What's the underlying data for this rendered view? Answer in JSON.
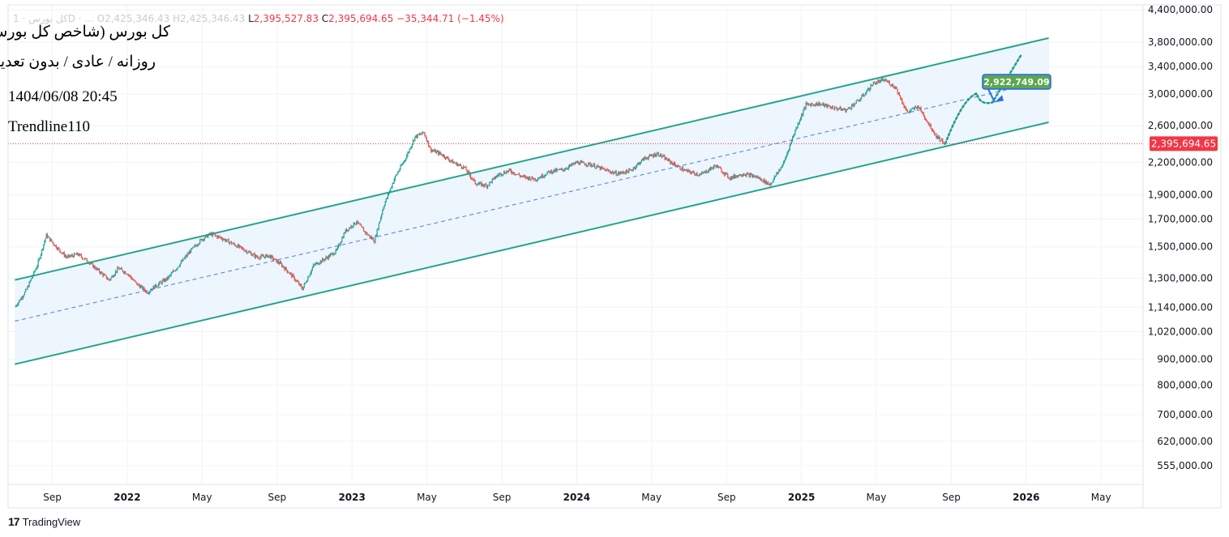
{
  "legend": {
    "symbol_faded": "کل بورس · 1D · ...",
    "open_label": "O",
    "open": "2,425,346.43",
    "high_label": "H",
    "high": "2,425,346.43",
    "low_label": "L",
    "low": "2,395,527.83",
    "close_label": "C",
    "close": "2,395,694.65",
    "change": "−35,344.71 (−1.45%)"
  },
  "annotations": {
    "title": "کل بورس (شاخص کل بورس)",
    "subtitle": "روزانه / عادی / بدون تعدیل",
    "datetime": "1404/06/08 20:45",
    "tag": "Trendline110"
  },
  "brand": {
    "logo_mark": "17",
    "name": "TradingView"
  },
  "colors": {
    "up": "#26a69a",
    "down": "#ef5350",
    "channel": "#22a38b",
    "channel_fill": "#eaf3fd",
    "midline": "#4f7fd9",
    "projection": "#1e9e8a",
    "target_box": "#5aa84e",
    "target_border": "#2962ff",
    "price_tag": "#f23645",
    "grid": "#f0f3fa"
  },
  "chart_data": {
    "type": "candlestick",
    "scale": "log",
    "ylim": [
      510000,
      4500000
    ],
    "y_ticks": [
      555000,
      620000,
      700000,
      800000,
      900000,
      1020000,
      1140000,
      1300000,
      1500000,
      1700000,
      1900000,
      2200000,
      2600000,
      3000000,
      3400000,
      3800000,
      4400000
    ],
    "y_tick_labels": [
      "555,000.00",
      "620,000.00",
      "700,000.00",
      "800,000.00",
      "900,000.00",
      "1,020,000.00",
      "1,140,000.00",
      "1,300,000.00",
      "1,500,000.00",
      "1,700,000.00",
      "1,900,000.00",
      "2,200,000.00",
      "2,600,000.00",
      "3,000,000.00",
      "3,400,000.00",
      "3,800,000.00",
      "4,400,000.00"
    ],
    "x_range": [
      "2021-07",
      "2026-09"
    ],
    "x_ticks": [
      {
        "label": "Sep",
        "t": 2021.667,
        "bold": false
      },
      {
        "label": "2022",
        "t": 2022.0,
        "bold": true
      },
      {
        "label": "May",
        "t": 2022.333,
        "bold": false
      },
      {
        "label": "Sep",
        "t": 2022.667,
        "bold": false
      },
      {
        "label": "2023",
        "t": 2023.0,
        "bold": true
      },
      {
        "label": "May",
        "t": 2023.333,
        "bold": false
      },
      {
        "label": "Sep",
        "t": 2023.667,
        "bold": false
      },
      {
        "label": "2024",
        "t": 2024.0,
        "bold": true
      },
      {
        "label": "May",
        "t": 2024.333,
        "bold": false
      },
      {
        "label": "Sep",
        "t": 2024.667,
        "bold": false
      },
      {
        "label": "2025",
        "t": 2025.0,
        "bold": true
      },
      {
        "label": "May",
        "t": 2025.333,
        "bold": false
      },
      {
        "label": "Sep",
        "t": 2025.667,
        "bold": false
      },
      {
        "label": "2026",
        "t": 2026.0,
        "bold": true
      },
      {
        "label": "May",
        "t": 2026.333,
        "bold": false
      }
    ],
    "price_path": [
      [
        2021.5,
        1140000
      ],
      [
        2021.55,
        1230000
      ],
      [
        2021.6,
        1380000
      ],
      [
        2021.64,
        1580000
      ],
      [
        2021.69,
        1490000
      ],
      [
        2021.73,
        1430000
      ],
      [
        2021.78,
        1450000
      ],
      [
        2021.82,
        1410000
      ],
      [
        2021.86,
        1360000
      ],
      [
        2021.92,
        1290000
      ],
      [
        2021.96,
        1360000
      ],
      [
        2022.0,
        1330000
      ],
      [
        2022.04,
        1270000
      ],
      [
        2022.09,
        1220000
      ],
      [
        2022.13,
        1260000
      ],
      [
        2022.18,
        1300000
      ],
      [
        2022.23,
        1380000
      ],
      [
        2022.28,
        1470000
      ],
      [
        2022.33,
        1550000
      ],
      [
        2022.37,
        1590000
      ],
      [
        2022.42,
        1560000
      ],
      [
        2022.47,
        1520000
      ],
      [
        2022.52,
        1480000
      ],
      [
        2022.58,
        1430000
      ],
      [
        2022.63,
        1440000
      ],
      [
        2022.68,
        1390000
      ],
      [
        2022.73,
        1320000
      ],
      [
        2022.78,
        1240000
      ],
      [
        2022.83,
        1380000
      ],
      [
        2022.88,
        1420000
      ],
      [
        2022.93,
        1470000
      ],
      [
        2022.97,
        1610000
      ],
      [
        2023.02,
        1680000
      ],
      [
        2023.06,
        1600000
      ],
      [
        2023.1,
        1540000
      ],
      [
        2023.14,
        1800000
      ],
      [
        2023.19,
        2050000
      ],
      [
        2023.24,
        2250000
      ],
      [
        2023.28,
        2470000
      ],
      [
        2023.32,
        2520000
      ],
      [
        2023.35,
        2330000
      ],
      [
        2023.4,
        2280000
      ],
      [
        2023.45,
        2200000
      ],
      [
        2023.5,
        2150000
      ],
      [
        2023.55,
        2000000
      ],
      [
        2023.6,
        1980000
      ],
      [
        2023.65,
        2080000
      ],
      [
        2023.7,
        2120000
      ],
      [
        2023.76,
        2060000
      ],
      [
        2023.82,
        2040000
      ],
      [
        2023.88,
        2110000
      ],
      [
        2023.94,
        2130000
      ],
      [
        2024.0,
        2200000
      ],
      [
        2024.06,
        2180000
      ],
      [
        2024.12,
        2130000
      ],
      [
        2024.18,
        2090000
      ],
      [
        2024.24,
        2120000
      ],
      [
        2024.3,
        2240000
      ],
      [
        2024.36,
        2290000
      ],
      [
        2024.42,
        2200000
      ],
      [
        2024.48,
        2120000
      ],
      [
        2024.55,
        2080000
      ],
      [
        2024.62,
        2170000
      ],
      [
        2024.68,
        2050000
      ],
      [
        2024.74,
        2090000
      ],
      [
        2024.8,
        2060000
      ],
      [
        2024.86,
        1990000
      ],
      [
        2024.92,
        2190000
      ],
      [
        2024.97,
        2530000
      ],
      [
        2025.02,
        2860000
      ],
      [
        2025.08,
        2870000
      ],
      [
        2025.14,
        2820000
      ],
      [
        2025.2,
        2790000
      ],
      [
        2025.26,
        2930000
      ],
      [
        2025.32,
        3150000
      ],
      [
        2025.37,
        3200000
      ],
      [
        2025.42,
        3090000
      ],
      [
        2025.47,
        2760000
      ],
      [
        2025.52,
        2840000
      ],
      [
        2025.56,
        2650000
      ],
      [
        2025.6,
        2480000
      ],
      [
        2025.64,
        2395694.65
      ]
    ],
    "last_price": 2395694.65,
    "last_price_label": "2,395,694.65",
    "channel": {
      "upper": [
        [
          2021.5,
          1290000
        ],
        [
          2026.1,
          3870000
        ]
      ],
      "lower": [
        [
          2021.5,
          880000
        ],
        [
          2026.1,
          2640000
        ]
      ],
      "mid": [
        [
          2021.5,
          1070000
        ],
        [
          2026.1,
          3200000
        ]
      ]
    },
    "projection": [
      [
        2025.64,
        2395694.65
      ],
      [
        2025.78,
        3010000
      ],
      [
        2025.85,
        2890000
      ],
      [
        2025.98,
        3600000
      ]
    ],
    "target": {
      "value": 2922749.09,
      "label": "2,922,749.09",
      "anchor": [
        2025.86,
        2922749.09
      ]
    }
  }
}
